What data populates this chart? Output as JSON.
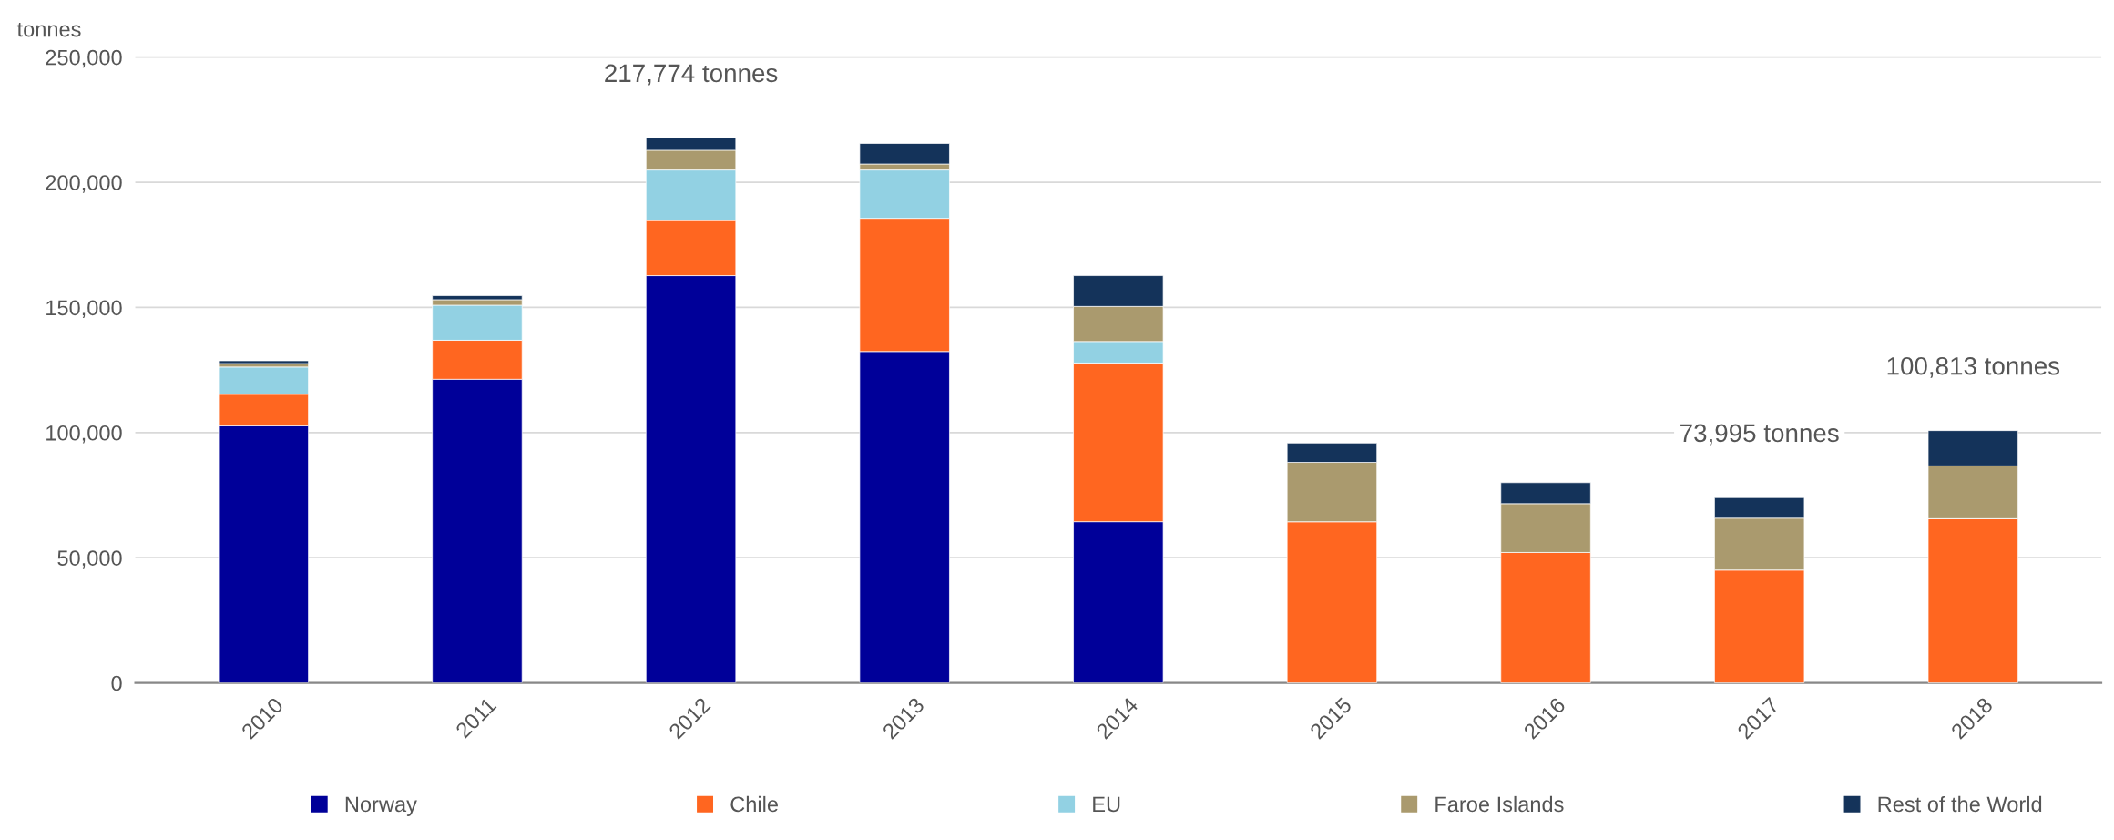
{
  "chart_data": {
    "type": "bar",
    "stacked": true,
    "ylabel": "tonnes",
    "categories": [
      "2010",
      "2011",
      "2012",
      "2013",
      "2014",
      "2015",
      "2016",
      "2017",
      "2018"
    ],
    "series": [
      {
        "name": "Norway",
        "color": "#000099",
        "values": [
          102700,
          121300,
          162700,
          132400,
          64400,
          null,
          null,
          null,
          null
        ]
      },
      {
        "name": "Chile",
        "color": "#ff6620",
        "values": [
          12600,
          15600,
          22000,
          53200,
          63400,
          64400,
          52100,
          45100,
          65600
        ]
      },
      {
        "name": "EU",
        "color": "#92d1e3",
        "values": [
          10900,
          14000,
          20200,
          19300,
          8600,
          null,
          null,
          null,
          null
        ]
      },
      {
        "name": "Faroe Islands",
        "color": "#aa9a6e",
        "values": [
          1400,
          2200,
          7900,
          2400,
          14000,
          23700,
          19500,
          20700,
          21100
        ]
      },
      {
        "name": "Rest of the World",
        "color": "#14335a",
        "values": [
          1100,
          1600,
          5000,
          8200,
          12300,
          7700,
          8400,
          8200,
          14100
        ]
      }
    ],
    "ylim": [
      0,
      250000
    ],
    "yticks": [
      {
        "value": 0,
        "label": "0"
      },
      {
        "value": 50000,
        "label": "50,000"
      },
      {
        "value": 100000,
        "label": "100,000"
      },
      {
        "value": 150000,
        "label": "150,000"
      },
      {
        "value": 200000,
        "label": "200,000"
      },
      {
        "value": 250000,
        "label": "250,000"
      }
    ],
    "grid": "y",
    "legend": "bottom",
    "annotations": [
      {
        "text": "217,774 tonnes",
        "x": "2012",
        "y": 217774
      },
      {
        "text": "73,995 tonnes",
        "x": "2017",
        "y": 73995
      },
      {
        "text": "100,813 tonnes",
        "x": "2018",
        "y": 100813
      }
    ]
  }
}
